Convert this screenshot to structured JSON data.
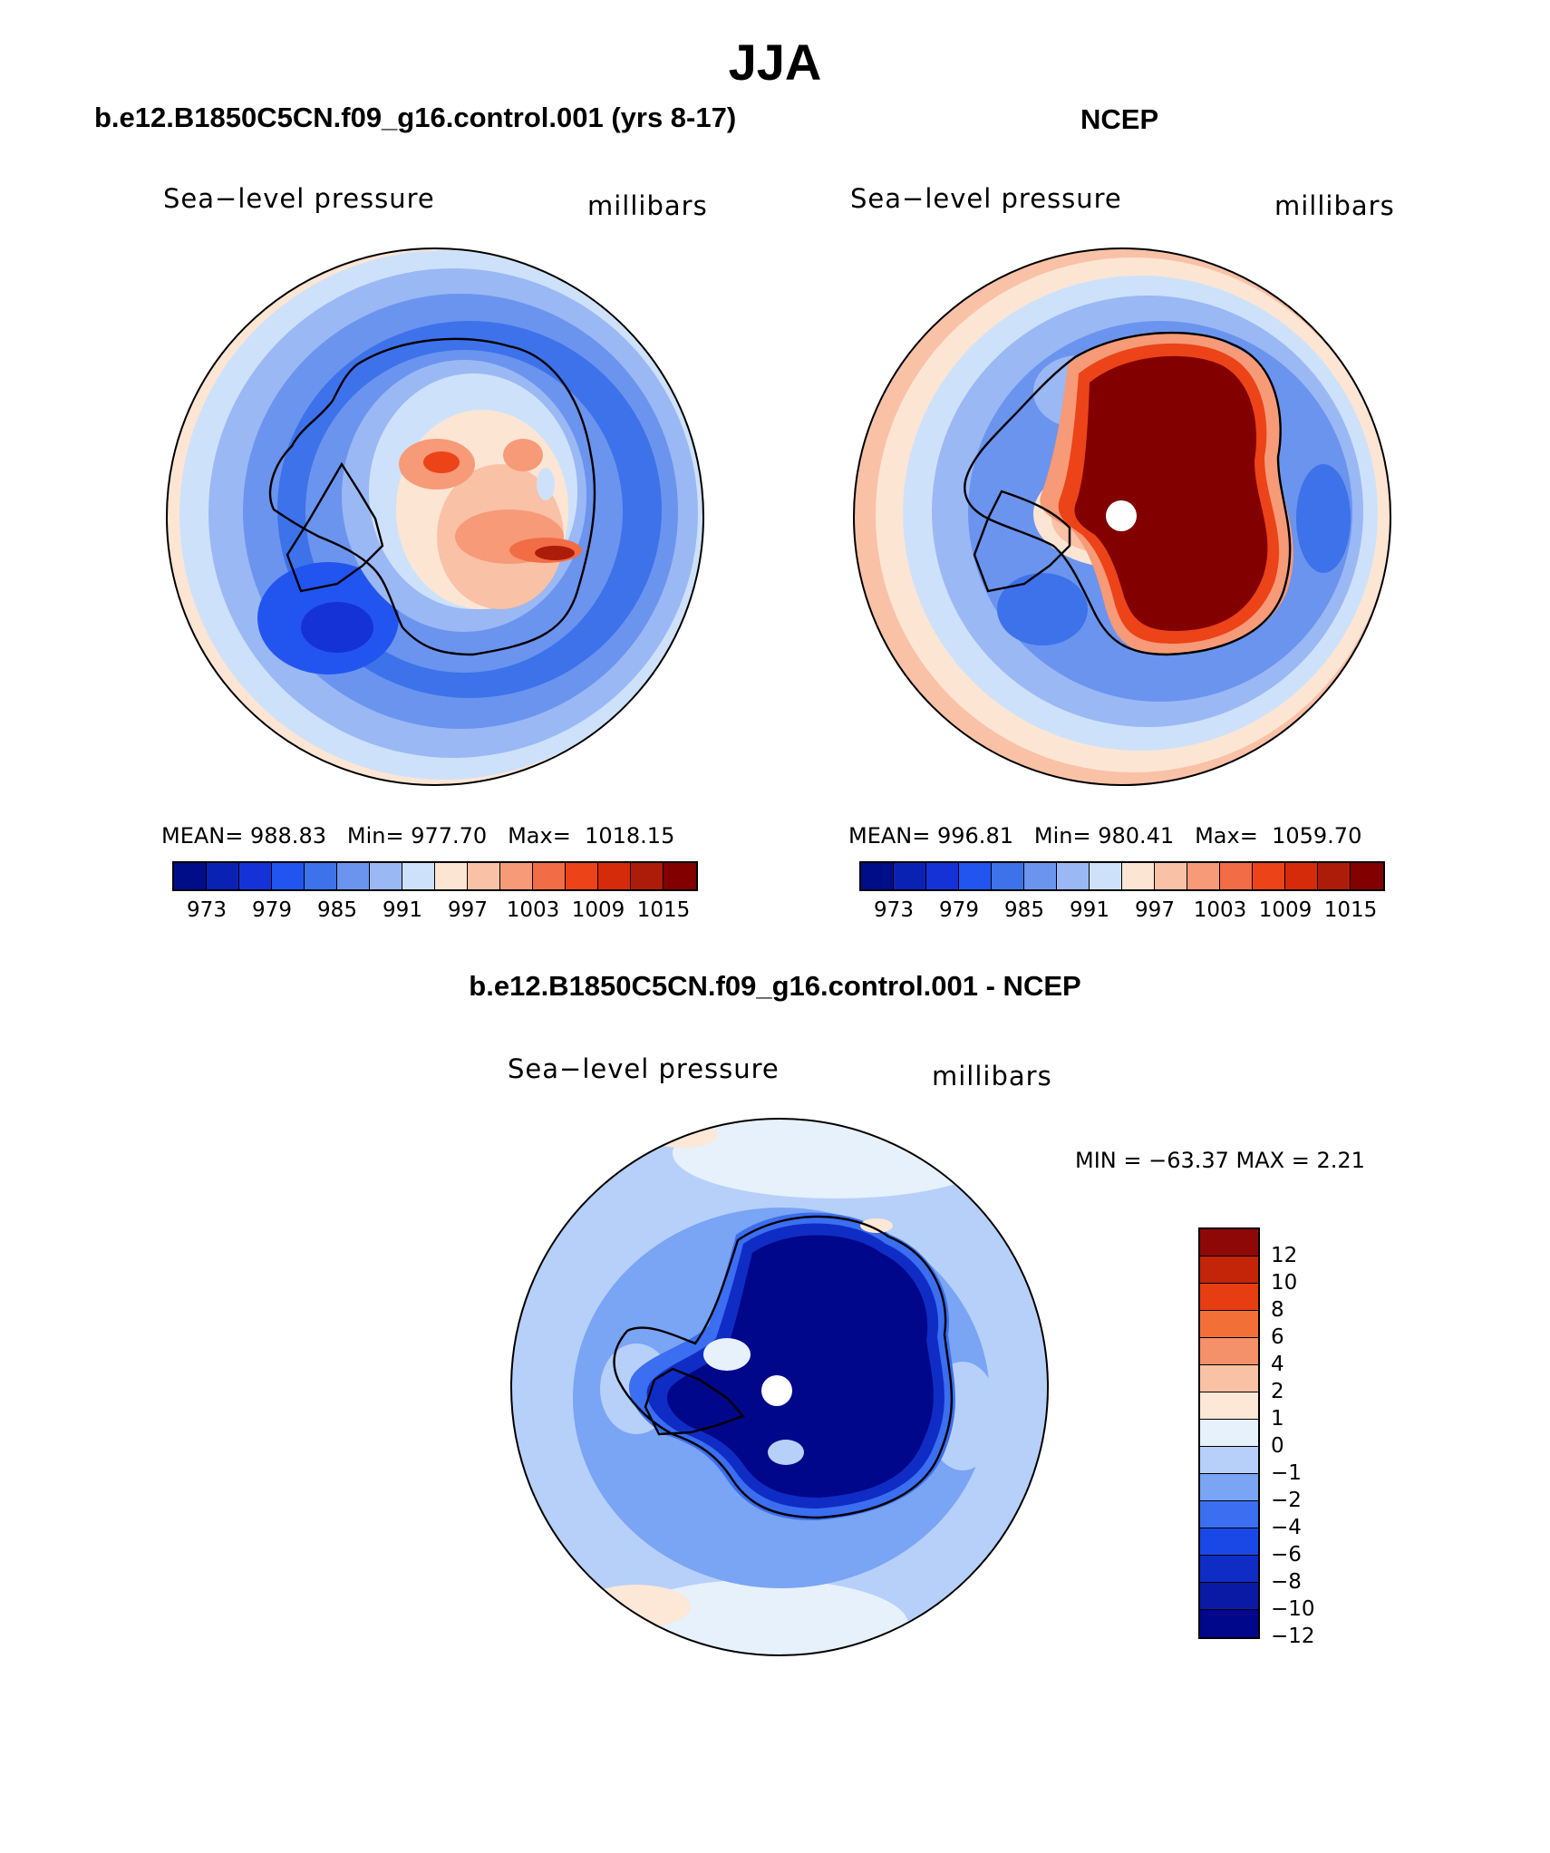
{
  "page": {
    "title": "JJA"
  },
  "colors": {
    "palette_abs": [
      "#000d88",
      "#0a22b4",
      "#1532d7",
      "#2255f0",
      "#3d72ea",
      "#6b94ee",
      "#9ab8f4",
      "#cde2fa",
      "#fde5d4",
      "#f9c1a6",
      "#f69a78",
      "#f26c45",
      "#ec4318",
      "#d52b0a",
      "#ad1c08",
      "#820000"
    ],
    "palette_diff": [
      "#00078a",
      "#0a1aa4",
      "#0f2dc4",
      "#1a48e6",
      "#3b6ef0",
      "#7aa4f4",
      "#b6d0fa",
      "#e6f1fc",
      "#fde7d6",
      "#f9c2a4",
      "#f4906a",
      "#f27038",
      "#e63d12",
      "#c42408",
      "#8f0808"
    ]
  },
  "panels": [
    {
      "id": "model",
      "title": "b.e12.B1850C5CN.f09_g16.control.001 (yrs 8-17)",
      "left_label": "Sea−level pressure",
      "right_label": "millibars",
      "stats": {
        "mean_label": "MEAN=",
        "mean": "988.83",
        "min_label": "Min=",
        "min": "977.70",
        "max_label": "Max=",
        "max": "1018.15"
      },
      "colorbar_ticks": [
        "973",
        "979",
        "985",
        "991",
        "997",
        "1003",
        "1009",
        "1015"
      ]
    },
    {
      "id": "obs",
      "title": "NCEP",
      "left_label": "Sea−level pressure",
      "right_label": "millibars",
      "stats": {
        "mean_label": "MEAN=",
        "mean": "996.81",
        "min_label": "Min=",
        "min": "980.41",
        "max_label": "Max=",
        "max": "1059.70"
      },
      "colorbar_ticks": [
        "973",
        "979",
        "985",
        "991",
        "997",
        "1003",
        "1009",
        "1015"
      ]
    },
    {
      "id": "diff",
      "title": "b.e12.B1850C5CN.f09_g16.control.001 - NCEP",
      "left_label": "Sea−level pressure",
      "right_label": "millibars",
      "minmax": "MIN = −63.37 MAX =    2.21",
      "colorbar_ticks": [
        "12",
        "10",
        "8",
        "6",
        "4",
        "2",
        "1",
        "0",
        "−1",
        "−2",
        "−4",
        "−6",
        "−8",
        "−10",
        "−12"
      ]
    }
  ]
}
